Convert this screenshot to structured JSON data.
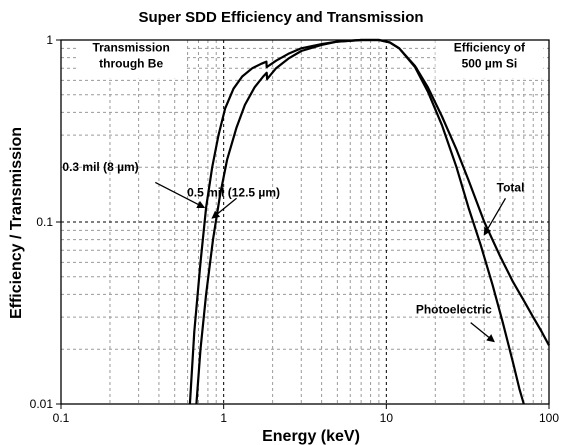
{
  "chart_data": {
    "type": "line",
    "title": "Super SDD Efficiency and Transmission",
    "xlabel": "Energy (keV)",
    "ylabel": "Efficiency / Transmission",
    "xscale": "log",
    "yscale": "log",
    "xlim": [
      0.1,
      100
    ],
    "ylim": [
      0.01,
      1
    ],
    "grid": true,
    "x_ticks": [
      "0.1",
      "1",
      "10",
      "100"
    ],
    "y_ticks": [
      "0.01",
      "0.1",
      "1"
    ],
    "series": [
      {
        "points": [
          [
            0.62,
            0.01
          ],
          [
            0.66,
            0.025
          ],
          [
            0.72,
            0.06
          ],
          [
            0.78,
            0.12
          ],
          [
            0.85,
            0.2
          ],
          [
            0.93,
            0.3
          ],
          [
            1.02,
            0.42
          ],
          [
            1.15,
            0.54
          ],
          [
            1.3,
            0.63
          ],
          [
            1.5,
            0.7
          ],
          [
            1.7,
            0.74
          ],
          [
            1.83,
            0.76
          ],
          [
            1.84,
            0.71
          ],
          [
            2.1,
            0.77
          ],
          [
            2.5,
            0.84
          ],
          [
            3.0,
            0.9
          ],
          [
            4.0,
            0.95
          ],
          [
            5.0,
            0.98
          ],
          [
            7.0,
            1.0
          ],
          [
            9.0,
            1.0
          ],
          [
            10.5,
            0.97
          ],
          [
            12.0,
            0.9
          ],
          [
            15.0,
            0.72
          ],
          [
            18.0,
            0.55
          ],
          [
            22.0,
            0.38
          ],
          [
            27.0,
            0.25
          ],
          [
            32.0,
            0.17
          ],
          [
            40.0,
            0.1
          ],
          [
            50.0,
            0.065
          ],
          [
            60.0,
            0.047
          ],
          [
            70.0,
            0.037
          ],
          [
            80.0,
            0.03
          ],
          [
            90.0,
            0.025
          ],
          [
            100.0,
            0.021
          ]
        ]
      },
      {
        "points": [
          [
            0.68,
            0.01
          ],
          [
            0.72,
            0.02
          ],
          [
            0.78,
            0.04
          ],
          [
            0.86,
            0.08
          ],
          [
            0.95,
            0.14
          ],
          [
            1.05,
            0.22
          ],
          [
            1.2,
            0.33
          ],
          [
            1.35,
            0.44
          ],
          [
            1.55,
            0.55
          ],
          [
            1.75,
            0.63
          ],
          [
            1.84,
            0.66
          ],
          [
            1.85,
            0.61
          ],
          [
            2.1,
            0.7
          ],
          [
            2.5,
            0.79
          ],
          [
            3.0,
            0.87
          ],
          [
            4.0,
            0.94
          ],
          [
            5.0,
            0.98
          ],
          [
            7.0,
            1.0
          ],
          [
            9.0,
            1.0
          ],
          [
            10.5,
            0.97
          ],
          [
            12.0,
            0.9
          ],
          [
            15.0,
            0.71
          ],
          [
            18.0,
            0.52
          ],
          [
            22.0,
            0.34
          ],
          [
            27.0,
            0.2
          ],
          [
            32.0,
            0.12
          ],
          [
            38.0,
            0.075
          ],
          [
            45.0,
            0.045
          ],
          [
            52.0,
            0.028
          ],
          [
            60.0,
            0.017
          ],
          [
            66.0,
            0.012
          ],
          [
            70.0,
            0.01
          ]
        ]
      }
    ],
    "annotations": [
      {
        "lines": [
          "Transmission",
          "through Be"
        ],
        "x": 0.27,
        "y": 0.82,
        "box": true
      },
      {
        "lines": [
          "Efficiency of",
          "500 µm Si"
        ],
        "x": 43,
        "y": 0.82,
        "box": true
      },
      {
        "lines": [
          "0.3 mil (8 µm)"
        ],
        "x": 0.175,
        "y": 0.2,
        "arrow_from": [
          0.38,
          0.165
        ],
        "arrow_to": [
          0.76,
          0.12
        ]
      },
      {
        "lines": [
          "0.5 mil (12.5 µm)"
        ],
        "x": 1.15,
        "y": 0.145,
        "arrow_from": [
          1.2,
          0.135
        ],
        "arrow_to": [
          0.85,
          0.105
        ]
      },
      {
        "lines": [
          "Total"
        ],
        "x": 58,
        "y": 0.155,
        "arrow_from": [
          54,
          0.135
        ],
        "arrow_to": [
          40,
          0.085
        ]
      },
      {
        "lines": [
          "Photoelectric"
        ],
        "x": 26,
        "y": 0.033,
        "arrow_from": [
          33,
          0.028
        ],
        "arrow_to": [
          46,
          0.022
        ]
      }
    ]
  }
}
